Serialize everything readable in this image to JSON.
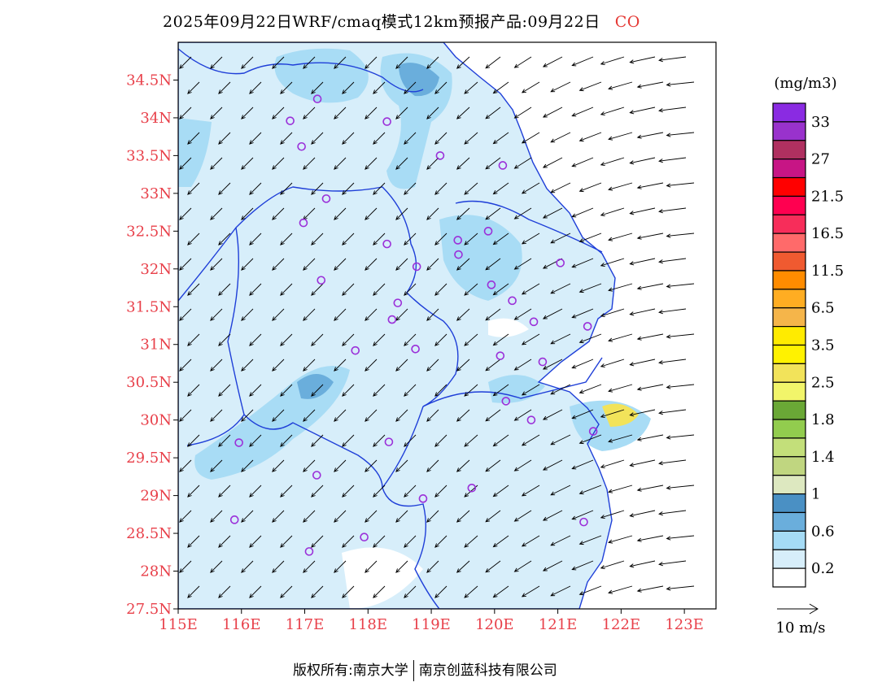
{
  "title": "2025年09月22日WRF/cmaq模式12km预报产品:09月22日",
  "pollutant": "CO",
  "footer": {
    "left": "版权所有:南京大学",
    "right": "南京创蓝科技有限公司"
  },
  "map": {
    "lon_range": [
      115,
      123.5
    ],
    "lat_range": [
      27.5,
      35
    ],
    "lon_ticks": [
      "115E",
      "116E",
      "117E",
      "118E",
      "119E",
      "120E",
      "121E",
      "122E",
      "123E"
    ],
    "lat_ticks": [
      "27.5N",
      "28N",
      "28.5N",
      "29N",
      "29.5N",
      "30N",
      "30.5N",
      "31N",
      "31.5N",
      "32N",
      "32.5N",
      "33N",
      "33.5N",
      "34N",
      "34.5N"
    ],
    "land_color": "#d7eefa",
    "station_color": "#9b30d9",
    "stations": [
      [
        117.2,
        34.25
      ],
      [
        116.77,
        33.96
      ],
      [
        118.3,
        33.95
      ],
      [
        116.95,
        33.62
      ],
      [
        119.14,
        33.5
      ],
      [
        120.13,
        33.37
      ],
      [
        117.34,
        32.93
      ],
      [
        116.98,
        32.61
      ],
      [
        119.9,
        32.5
      ],
      [
        119.42,
        32.38
      ],
      [
        118.3,
        32.33
      ],
      [
        119.43,
        32.19
      ],
      [
        118.77,
        32.03
      ],
      [
        121.04,
        32.08
      ],
      [
        117.26,
        31.85
      ],
      [
        119.95,
        31.79
      ],
      [
        120.28,
        31.58
      ],
      [
        118.47,
        31.55
      ],
      [
        120.62,
        31.3
      ],
      [
        118.38,
        31.33
      ],
      [
        121.47,
        31.24
      ],
      [
        117.8,
        30.92
      ],
      [
        118.75,
        30.94
      ],
      [
        120.09,
        30.85
      ],
      [
        120.76,
        30.77
      ],
      [
        120.18,
        30.25
      ],
      [
        120.58,
        30.0
      ],
      [
        121.56,
        29.85
      ],
      [
        115.96,
        29.7
      ],
      [
        118.33,
        29.71
      ],
      [
        117.19,
        29.27
      ],
      [
        119.64,
        29.1
      ],
      [
        118.87,
        28.96
      ],
      [
        115.89,
        28.68
      ],
      [
        121.41,
        28.65
      ],
      [
        117.94,
        28.45
      ],
      [
        117.07,
        28.26
      ]
    ]
  },
  "legend": {
    "unit": "(mg/m3)",
    "colors": [
      "#8a2be2",
      "#9932cc",
      "#b03060",
      "#c71585",
      "#ff0000",
      "#ff0050",
      "#f72d5a",
      "#ff6a6a",
      "#f05a30",
      "#ff8c00",
      "#ffad22",
      "#f5b54a",
      "#ffeb00",
      "#fff200",
      "#f2e35a",
      "#f2f56a",
      "#6aa836",
      "#92cc4e",
      "#c3df7a",
      "#c0d680",
      "#dde8c0",
      "#4a90c4",
      "#6aaedc",
      "#a5dbf5",
      "#d7eefa",
      "#ffffff"
    ],
    "labels": [
      "33",
      "27",
      "21.5",
      "16.5",
      "11.5",
      "6.5",
      "3.5",
      "2.5",
      "1.8",
      "1.4",
      "1",
      "0.6",
      "0.2"
    ],
    "wind_ref": "10 m/s"
  }
}
